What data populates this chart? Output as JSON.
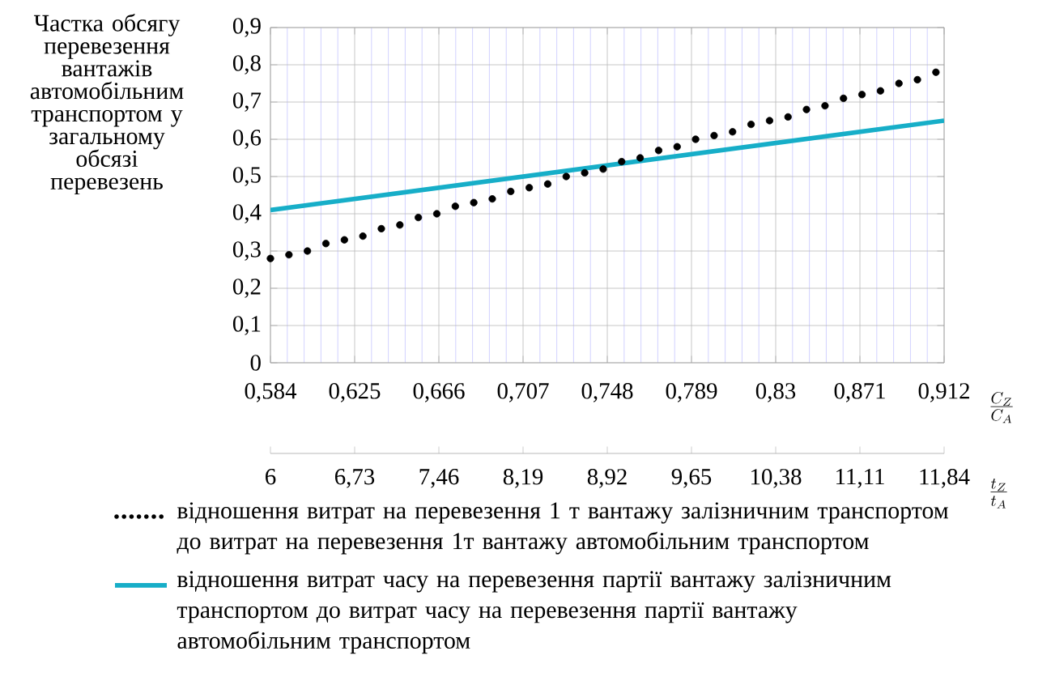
{
  "chart_data": {
    "type": "line",
    "ylabel": "Частка обсягу перевезення вантажів автомобільним транспортом у загальному обсязі перевезень",
    "xlabel": "\\frac{C_Z}{C_A}",
    "x2label": "\\frac{t_Z}{t_A}",
    "xlim": [
      0.584,
      0.912
    ],
    "xticks": [
      {
        "value": 0.584,
        "label": "0,584"
      },
      {
        "value": 0.5922,
        "label": null
      },
      {
        "value": 0.6004,
        "label": null
      },
      {
        "value": 0.6086,
        "label": null
      },
      {
        "value": 0.6168,
        "label": null
      },
      {
        "value": 0.625,
        "label": "0,625"
      },
      {
        "value": 0.6332,
        "label": null
      },
      {
        "value": 0.6414,
        "label": null
      },
      {
        "value": 0.6496,
        "label": null
      },
      {
        "value": 0.6578,
        "label": null
      },
      {
        "value": 0.666,
        "label": "0,666"
      },
      {
        "value": 0.6742,
        "label": null
      },
      {
        "value": 0.6824,
        "label": null
      },
      {
        "value": 0.6906,
        "label": null
      },
      {
        "value": 0.6988,
        "label": null
      },
      {
        "value": 0.707,
        "label": "0,707"
      },
      {
        "value": 0.7152,
        "label": null
      },
      {
        "value": 0.7234,
        "label": null
      },
      {
        "value": 0.7316,
        "label": null
      },
      {
        "value": 0.7398,
        "label": null
      },
      {
        "value": 0.748,
        "label": "0,748"
      },
      {
        "value": 0.7562,
        "label": null
      },
      {
        "value": 0.7644,
        "label": null
      },
      {
        "value": 0.7726,
        "label": null
      },
      {
        "value": 0.7808,
        "label": null
      },
      {
        "value": 0.789,
        "label": "0,789"
      },
      {
        "value": 0.7972,
        "label": null
      },
      {
        "value": 0.8054,
        "label": null
      },
      {
        "value": 0.8136,
        "label": null
      },
      {
        "value": 0.8218,
        "label": null
      },
      {
        "value": 0.83,
        "label": "0,83"
      },
      {
        "value": 0.8382,
        "label": null
      },
      {
        "value": 0.8464,
        "label": null
      },
      {
        "value": 0.8546,
        "label": null
      },
      {
        "value": 0.8628,
        "label": null
      },
      {
        "value": 0.871,
        "label": "0,871"
      },
      {
        "value": 0.8792,
        "label": null
      },
      {
        "value": 0.8874,
        "label": null
      },
      {
        "value": 0.8956,
        "label": null
      },
      {
        "value": 0.9038,
        "label": null
      },
      {
        "value": 0.912,
        "label": "0,912"
      }
    ],
    "x2lim": [
      6,
      11.84
    ],
    "x2ticks": [
      6,
      {
        "value": 6.73,
        "label": "6,73"
      },
      {
        "value": 7.46,
        "label": "7,46"
      },
      {
        "value": 8.19,
        "label": "8,19"
      },
      {
        "value": 8.92,
        "label": "8,92"
      },
      {
        "value": 9.65,
        "label": "9,65"
      },
      {
        "value": 10.38,
        "label": "10,38"
      },
      {
        "value": 11.11,
        "label": "11,11"
      },
      {
        "value": 11.84,
        "label": "11,84"
      }
    ],
    "ylim": [
      0,
      0.9
    ],
    "yticks": [
      0,
      {
        "value": 0.1,
        "label": "0,1"
      },
      {
        "value": 0.2,
        "label": "0,2"
      },
      {
        "value": 0.3,
        "label": "0,3"
      },
      {
        "value": 0.4,
        "label": "0,4"
      },
      {
        "value": 0.5,
        "label": "0,5"
      },
      {
        "value": 0.6,
        "label": "0,6"
      },
      {
        "value": 0.7,
        "label": "0,7"
      },
      {
        "value": 0.8,
        "label": "0,8"
      },
      {
        "value": 0.9,
        "label": "0,9"
      }
    ],
    "grid": true,
    "legend": "bottom",
    "series": [
      {
        "name": "відношення витрат на перевезення 1 т вантажу залізничним транспортом до витрат на перевезення 1т вантажу автомобільним транспортом",
        "type": "scatter",
        "marker": "circle",
        "color": "#000000",
        "x": [
          0.584,
          0.593,
          0.602,
          0.611,
          0.62,
          0.629,
          0.638,
          0.647,
          0.656,
          0.665,
          0.674,
          0.683,
          0.692,
          0.701,
          0.71,
          0.719,
          0.728,
          0.737,
          0.746,
          0.755,
          0.764,
          0.773,
          0.782,
          0.791,
          0.8,
          0.809,
          0.818,
          0.827,
          0.836,
          0.845,
          0.854,
          0.863,
          0.872,
          0.881,
          0.89,
          0.899,
          0.908
        ],
        "values": [
          0.28,
          0.29,
          0.3,
          0.32,
          0.33,
          0.34,
          0.36,
          0.37,
          0.39,
          0.4,
          0.42,
          0.43,
          0.44,
          0.46,
          0.47,
          0.48,
          0.5,
          0.51,
          0.52,
          0.54,
          0.55,
          0.57,
          0.58,
          0.6,
          0.61,
          0.62,
          0.64,
          0.65,
          0.66,
          0.68,
          0.69,
          0.71,
          0.72,
          0.73,
          0.75,
          0.76,
          0.78
        ]
      },
      {
        "name": "відношення витрат часу на перевезення партії вантажу залізничним транспортом до витрат часу на перевезення партії вантажу автомобільним транспортом",
        "type": "line",
        "color": "#17aec8",
        "x": [
          0.584,
          0.912
        ],
        "values": [
          0.41,
          0.65
        ]
      }
    ]
  }
}
